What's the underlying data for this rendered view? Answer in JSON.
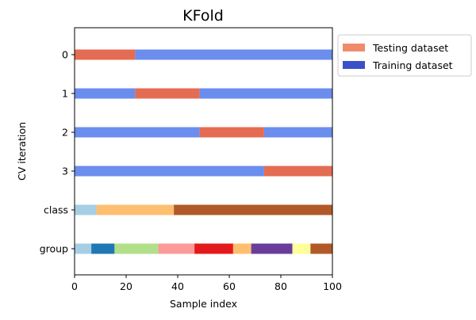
{
  "chart_data": {
    "type": "bar",
    "orientation": "horizontal",
    "title": "KFold",
    "xlabel": "Sample index",
    "ylabel": "CV iteration",
    "xlim": [
      0,
      100
    ],
    "x_ticks": [
      0,
      20,
      40,
      60,
      80,
      100
    ],
    "grid": false,
    "legend_placement": "outside-top-right",
    "legend": [
      {
        "label": "Testing dataset",
        "color": "#f08c6c"
      },
      {
        "label": "Training dataset",
        "color": "#3b50c8"
      }
    ],
    "rows": [
      {
        "label": "0",
        "segments": [
          {
            "start": 0,
            "end": 23.5,
            "role": "test",
            "color": "#e46c53"
          },
          {
            "start": 23.5,
            "end": 100,
            "role": "train",
            "color": "#6b8ded"
          }
        ]
      },
      {
        "label": "1",
        "segments": [
          {
            "start": 0,
            "end": 23.5,
            "role": "train",
            "color": "#6b8ded"
          },
          {
            "start": 23.5,
            "end": 48.5,
            "role": "test",
            "color": "#e46c53"
          },
          {
            "start": 48.5,
            "end": 100,
            "role": "train",
            "color": "#6b8ded"
          }
        ]
      },
      {
        "label": "2",
        "segments": [
          {
            "start": 0,
            "end": 48.5,
            "role": "train",
            "color": "#6b8ded"
          },
          {
            "start": 48.5,
            "end": 73.5,
            "role": "test",
            "color": "#e46c53"
          },
          {
            "start": 73.5,
            "end": 100,
            "role": "train",
            "color": "#6b8ded"
          }
        ]
      },
      {
        "label": "3",
        "segments": [
          {
            "start": 0,
            "end": 73.5,
            "role": "train",
            "color": "#6b8ded"
          },
          {
            "start": 73.5,
            "end": 100,
            "role": "test",
            "color": "#e46c53"
          }
        ]
      },
      {
        "label": "class",
        "segments": [
          {
            "start": 0,
            "end": 8.5,
            "color": "#a6cee3"
          },
          {
            "start": 8.5,
            "end": 38.5,
            "color": "#fdbf6f"
          },
          {
            "start": 38.5,
            "end": 100,
            "color": "#b15928"
          }
        ]
      },
      {
        "label": "group",
        "segments": [
          {
            "start": 0,
            "end": 6.5,
            "color": "#a6cee3"
          },
          {
            "start": 6.5,
            "end": 15.5,
            "color": "#1f78b4"
          },
          {
            "start": 15.5,
            "end": 32.5,
            "color": "#b2df8a"
          },
          {
            "start": 32.5,
            "end": 46.5,
            "color": "#fb9a99"
          },
          {
            "start": 46.5,
            "end": 61.5,
            "color": "#e31a1c"
          },
          {
            "start": 61.5,
            "end": 68.5,
            "color": "#fdbf6f"
          },
          {
            "start": 68.5,
            "end": 84.5,
            "color": "#6a3d9a"
          },
          {
            "start": 84.5,
            "end": 91.5,
            "color": "#ffff99"
          },
          {
            "start": 91.5,
            "end": 100,
            "color": "#b15928"
          }
        ]
      }
    ]
  }
}
